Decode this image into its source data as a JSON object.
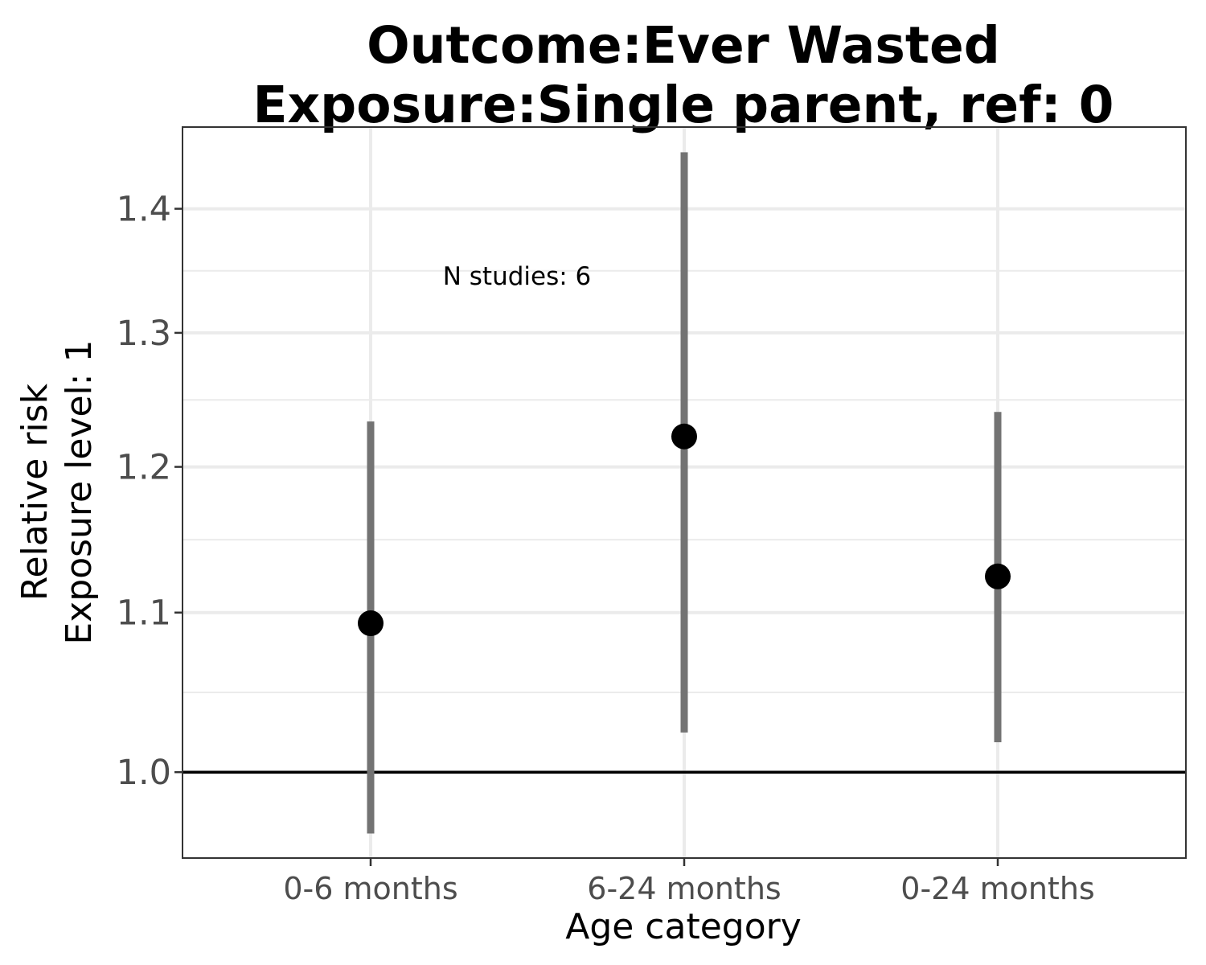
{
  "chart_data": {
    "type": "scatter",
    "title": [
      "Outcome:Ever Wasted",
      "Exposure:Single parent, ref: 0"
    ],
    "xlabel": "Age category",
    "ylabel": [
      "Relative risk",
      "Exposure level: 1"
    ],
    "categories": [
      "0-6 months",
      "6-24 months",
      "0-24 months"
    ],
    "series": [
      {
        "values": [
          1.093,
          1.222,
          1.124
        ],
        "ci_lower": [
          0.964,
          1.024,
          1.018
        ],
        "ci_upper": [
          1.233,
          1.448,
          1.24
        ]
      }
    ],
    "y_scale": "log",
    "ylim": [
      0.95,
      1.47
    ],
    "yticks": [
      1.0,
      1.1,
      1.2,
      1.3,
      1.4
    ],
    "ytick_labels": [
      "1.0",
      "1.1",
      "1.2",
      "1.3",
      "1.4"
    ],
    "reference_line": 1.0,
    "annotation": "N studies: 6",
    "grid": true,
    "legend": "none",
    "colors": {
      "point": "#000000",
      "ci": "#737373",
      "grid": "#ebebeb",
      "panel_border": "#333333",
      "reference_line": "#000000",
      "tick_text": "#4d4d4d"
    }
  }
}
